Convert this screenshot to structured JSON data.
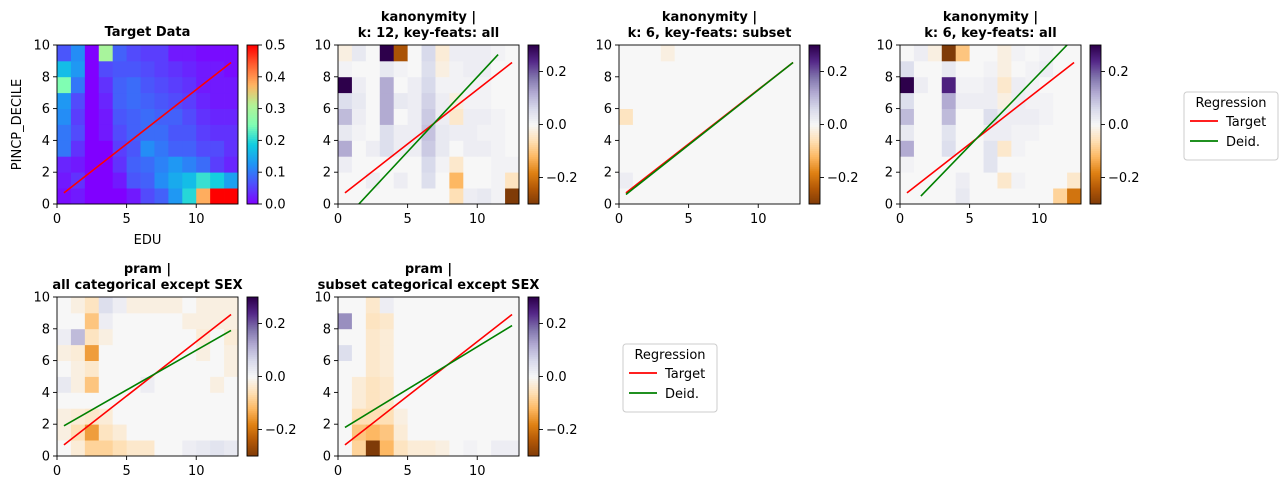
{
  "figure": {
    "legend_title": "Regression"
  },
  "chart_data": [
    {
      "type": "heatmap",
      "title_line1": "Target Data",
      "title_line2": "",
      "xlabel": "EDU",
      "ylabel": "PINCP_DECILE",
      "xlim": [
        0,
        13
      ],
      "ylim": [
        0,
        10
      ],
      "xticks": [
        0,
        5,
        10
      ],
      "yticks": [
        0,
        2,
        4,
        6,
        8,
        10
      ],
      "cmap": "rainbow",
      "clim": [
        0,
        0.5
      ],
      "cbar_ticks": [
        0,
        0.1,
        0.2,
        0.3,
        0.4,
        0.5
      ],
      "cbar_ticklabels": [
        "0.0",
        "0.1",
        "0.2",
        "0.3",
        "0.4",
        "0.5"
      ],
      "grid": false,
      "series": [
        {
          "name": "Target",
          "color": "#ff0000",
          "x": [
            0.5,
            12.5
          ],
          "y": [
            0.7,
            8.9
          ]
        }
      ],
      "cells": [
        [
          0.01,
          0.02,
          0.0,
          0.0,
          0.0,
          0.02,
          0.06,
          0.08,
          0.13,
          0.2,
          0.38,
          0.5,
          0.5
        ],
        [
          0.02,
          0.04,
          0.0,
          0.0,
          0.02,
          0.07,
          0.08,
          0.12,
          0.15,
          0.17,
          0.21,
          0.19,
          0.14
        ],
        [
          0.03,
          0.02,
          0.0,
          0.0,
          0.04,
          0.08,
          0.09,
          0.11,
          0.13,
          0.11,
          0.09,
          0.05,
          0.03
        ],
        [
          0.1,
          0.04,
          0.0,
          0.0,
          0.05,
          0.07,
          0.12,
          0.1,
          0.08,
          0.08,
          0.06,
          0.06,
          0.04
        ],
        [
          0.1,
          0.06,
          0.0,
          0.02,
          0.06,
          0.08,
          0.09,
          0.09,
          0.07,
          0.07,
          0.05,
          0.04,
          0.04
        ],
        [
          0.12,
          0.05,
          0.0,
          0.02,
          0.07,
          0.08,
          0.09,
          0.08,
          0.08,
          0.06,
          0.04,
          0.03,
          0.03
        ],
        [
          0.13,
          0.06,
          0.0,
          0.03,
          0.08,
          0.09,
          0.08,
          0.07,
          0.06,
          0.05,
          0.03,
          0.02,
          0.02
        ],
        [
          0.25,
          0.1,
          0.0,
          0.04,
          0.08,
          0.09,
          0.07,
          0.06,
          0.05,
          0.04,
          0.02,
          0.02,
          0.02
        ],
        [
          0.17,
          0.13,
          0.0,
          0.06,
          0.07,
          0.07,
          0.06,
          0.05,
          0.04,
          0.03,
          0.02,
          0.02,
          0.01
        ],
        [
          0.07,
          0.12,
          0.0,
          0.3,
          0.08,
          0.06,
          0.05,
          0.05,
          0.02,
          0.02,
          0.01,
          0.01,
          0.01
        ]
      ]
    },
    {
      "type": "heatmap",
      "title_line1": "kanonymity |",
      "title_line2": "k: 12, key-feats: all",
      "xlabel": "",
      "ylabel": "",
      "xlim": [
        0,
        13
      ],
      "ylim": [
        0,
        10
      ],
      "xticks": [
        0,
        5,
        10
      ],
      "yticks": [
        0,
        2,
        4,
        6,
        8,
        10
      ],
      "cmap": "PuOr",
      "clim": [
        -0.3,
        0.3
      ],
      "cbar_ticks": [
        -0.2,
        0.0,
        0.2
      ],
      "cbar_ticklabels": [
        "−0.2",
        "0.0",
        "0.2"
      ],
      "grid": false,
      "series": [
        {
          "name": "Target",
          "color": "#ff0000",
          "x": [
            0.5,
            12.5
          ],
          "y": [
            0.7,
            8.9
          ]
        },
        {
          "name": "Deid.",
          "color": "#008000",
          "x": [
            1.5,
            11.5
          ],
          "y": [
            0.0,
            9.4
          ]
        }
      ],
      "cells": [
        [
          0,
          0,
          0,
          0,
          0,
          0,
          0,
          0,
          -0.06,
          0.02,
          0.03,
          0.01,
          -0.3
        ],
        [
          0,
          0,
          0.02,
          0,
          0.02,
          0,
          0.05,
          0,
          -0.12,
          0,
          0,
          0.01,
          -0.05
        ],
        [
          0.02,
          0,
          0,
          0,
          0,
          0,
          0.06,
          0.01,
          -0.04,
          0,
          0,
          0.01,
          0.01
        ],
        [
          0.12,
          0,
          0.02,
          0.05,
          0.02,
          0.02,
          0.08,
          0.03,
          0,
          0.02,
          0.02,
          0.01,
          0
        ],
        [
          0.03,
          0.01,
          0,
          0.05,
          0.02,
          0.02,
          0.09,
          0.03,
          0.02,
          0.02,
          0.01,
          0.01,
          0
        ],
        [
          0.1,
          0.02,
          0,
          0.12,
          0,
          0.02,
          0.08,
          0.02,
          -0.04,
          0.02,
          0.02,
          0.01,
          0
        ],
        [
          0.05,
          0.03,
          0,
          0.12,
          0.03,
          0.02,
          0.07,
          0.02,
          -0.02,
          0.01,
          0.01,
          0,
          0
        ],
        [
          0.3,
          0.02,
          0,
          0.12,
          0,
          0.02,
          0.06,
          0.01,
          0.01,
          0.01,
          0.01,
          0,
          0
        ],
        [
          0.01,
          0,
          0,
          0.03,
          0.01,
          0,
          0.05,
          -0.02,
          0.01,
          0.02,
          0.02,
          0,
          0
        ],
        [
          -0.02,
          0.03,
          0,
          0.3,
          -0.25,
          0,
          0.06,
          -0.03,
          0.02,
          0.02,
          0.02,
          0.01,
          0
        ]
      ]
    },
    {
      "type": "heatmap",
      "title_line1": "kanonymity |",
      "title_line2": "k: 6, key-feats: subset",
      "xlabel": "",
      "ylabel": "",
      "xlim": [
        0,
        13
      ],
      "ylim": [
        0,
        10
      ],
      "xticks": [
        0,
        5,
        10
      ],
      "yticks": [
        0,
        2,
        4,
        6,
        8,
        10
      ],
      "cmap": "PuOr",
      "clim": [
        -0.3,
        0.3
      ],
      "cbar_ticks": [
        -0.2,
        0.0,
        0.2
      ],
      "cbar_ticklabels": [
        "−0.2",
        "0.0",
        "0.2"
      ],
      "grid": false,
      "series": [
        {
          "name": "Target",
          "color": "#ff0000",
          "x": [
            0.5,
            12.5
          ],
          "y": [
            0.7,
            8.9
          ]
        },
        {
          "name": "Deid.",
          "color": "#008000",
          "x": [
            0.5,
            12.5
          ],
          "y": [
            0.6,
            8.9
          ]
        }
      ],
      "cells": [
        [
          0,
          0,
          0,
          0,
          0,
          0,
          0,
          0,
          0,
          0,
          0,
          0,
          0
        ],
        [
          0.02,
          0,
          0,
          0,
          0,
          0,
          0,
          0,
          0,
          0,
          0,
          0,
          0
        ],
        [
          0,
          0,
          0,
          0,
          0,
          0,
          0,
          0,
          0,
          0,
          0,
          0,
          0
        ],
        [
          0,
          0,
          0,
          0,
          0,
          0,
          0,
          0,
          0,
          0,
          0,
          0,
          0
        ],
        [
          0,
          0,
          0,
          0,
          0,
          0,
          0,
          0,
          0,
          0,
          0,
          0,
          0
        ],
        [
          -0.05,
          0,
          0,
          0,
          0,
          0,
          0,
          0,
          0,
          0,
          0,
          0,
          0
        ],
        [
          0,
          0,
          0,
          0,
          0,
          0,
          0,
          0,
          0,
          0,
          0,
          0,
          0
        ],
        [
          0,
          0,
          0,
          0,
          0,
          0,
          0,
          0,
          0,
          0,
          0,
          0,
          0
        ],
        [
          0,
          0,
          0,
          0,
          0,
          0,
          0,
          0,
          0,
          0,
          0,
          0,
          0
        ],
        [
          0,
          0,
          0,
          -0.02,
          0,
          0,
          0,
          0,
          0,
          0,
          0,
          0,
          0
        ]
      ]
    },
    {
      "type": "heatmap",
      "title_line1": "kanonymity |",
      "title_line2": "k: 6, key-feats: all",
      "xlabel": "",
      "ylabel": "",
      "xlim": [
        0,
        13
      ],
      "ylim": [
        0,
        10
      ],
      "xticks": [
        0,
        5,
        10
      ],
      "yticks": [
        0,
        2,
        4,
        6,
        8,
        10
      ],
      "cmap": "PuOr",
      "clim": [
        -0.3,
        0.3
      ],
      "cbar_ticks": [
        -0.2,
        0.0,
        0.2
      ],
      "cbar_ticklabels": [
        "−0.2",
        "0.0",
        "0.2"
      ],
      "grid": false,
      "series": [
        {
          "name": "Target",
          "color": "#ff0000",
          "x": [
            0.5,
            12.5
          ],
          "y": [
            0.7,
            8.9
          ]
        },
        {
          "name": "Deid.",
          "color": "#008000",
          "x": [
            1.5,
            12.0
          ],
          "y": [
            0.5,
            10.0
          ]
        }
      ],
      "cells": [
        [
          0,
          0,
          0,
          0,
          0.03,
          0,
          0,
          0,
          0,
          0,
          0,
          -0.08,
          -0.2
        ],
        [
          0,
          0,
          0,
          0,
          0.02,
          0,
          0,
          -0.04,
          0.01,
          0,
          0,
          0,
          -0.04
        ],
        [
          0.01,
          0,
          0,
          0,
          0,
          0,
          0.04,
          0,
          0,
          0,
          0,
          0,
          0
        ],
        [
          0.12,
          0,
          0,
          0.05,
          0,
          0,
          0.04,
          -0.04,
          0.01,
          0,
          0,
          0,
          0
        ],
        [
          0.03,
          0,
          0,
          0.04,
          0,
          0,
          0.02,
          0.02,
          0.01,
          0.01,
          0,
          0,
          0
        ],
        [
          0.1,
          0,
          0,
          0.1,
          0,
          0,
          0.05,
          0.02,
          0.02,
          0.02,
          0.01,
          0,
          0
        ],
        [
          0.05,
          0,
          0,
          0.12,
          0.02,
          0.02,
          0.02,
          -0.02,
          0.02,
          0.01,
          0.01,
          0,
          0
        ],
        [
          0.3,
          0.02,
          0,
          0.25,
          0.01,
          0.01,
          0.02,
          -0.04,
          0.02,
          0.01,
          0,
          0,
          0
        ],
        [
          0.05,
          0,
          0,
          0.03,
          0,
          0,
          0.01,
          -0.02,
          0,
          0.01,
          0.02,
          0,
          0
        ],
        [
          0,
          0.02,
          -0.02,
          -0.3,
          -0.1,
          0,
          0,
          -0.02,
          0.01,
          0,
          0.01,
          0,
          0
        ]
      ]
    },
    {
      "type": "heatmap",
      "title_line1": "pram |",
      "title_line2": "all categorical except SEX",
      "xlabel": "",
      "ylabel": "",
      "xlim": [
        0,
        13
      ],
      "ylim": [
        0,
        10
      ],
      "xticks": [
        0,
        5,
        10
      ],
      "yticks": [
        0,
        2,
        4,
        6,
        8,
        10
      ],
      "cmap": "PuOr",
      "clim": [
        -0.3,
        0.3
      ],
      "cbar_ticks": [
        -0.2,
        0.0,
        0.2
      ],
      "cbar_ticklabels": [
        "−0.2",
        "0.0",
        "0.2"
      ],
      "grid": false,
      "series": [
        {
          "name": "Target",
          "color": "#ff0000",
          "x": [
            0.5,
            12.5
          ],
          "y": [
            0.7,
            8.9
          ]
        },
        {
          "name": "Deid.",
          "color": "#008000",
          "x": [
            0.5,
            12.5
          ],
          "y": [
            1.9,
            7.9
          ]
        }
      ],
      "cells": [
        [
          0,
          -0.03,
          -0.08,
          -0.08,
          -0.06,
          -0.04,
          -0.04,
          0,
          0,
          0.02,
          0.03,
          0.04,
          0.03
        ],
        [
          -0.02,
          -0.06,
          -0.15,
          -0.05,
          -0.03,
          0,
          0,
          0,
          0,
          0,
          0,
          0,
          0
        ],
        [
          -0.02,
          -0.03,
          -0.04,
          -0.03,
          0,
          0,
          0,
          0,
          0,
          0,
          0,
          0,
          0
        ],
        [
          0,
          0,
          0,
          0,
          0,
          0,
          0,
          0,
          0,
          0,
          0,
          0,
          0
        ],
        [
          0.03,
          -0.02,
          -0.1,
          0,
          0,
          0,
          0.02,
          0,
          0,
          0,
          0,
          -0.02,
          0
        ],
        [
          0,
          -0.02,
          -0.04,
          0,
          0,
          0,
          0,
          0,
          0,
          0,
          0,
          0,
          -0.02
        ],
        [
          -0.02,
          -0.03,
          -0.15,
          0,
          0,
          0,
          0,
          0,
          0,
          0,
          -0.02,
          0,
          -0.02
        ],
        [
          0.02,
          0.1,
          -0.05,
          -0.02,
          0,
          0,
          0,
          0,
          0,
          0,
          -0.03,
          0,
          -0.03
        ],
        [
          0,
          0,
          -0.1,
          0.02,
          0,
          0,
          0,
          0,
          0,
          -0.02,
          -0.02,
          -0.02,
          -0.02
        ],
        [
          0,
          -0.02,
          -0.05,
          0.05,
          0.02,
          -0.02,
          -0.02,
          -0.02,
          -0.02,
          0,
          -0.02,
          -0.02,
          -0.02
        ]
      ]
    },
    {
      "type": "heatmap",
      "title_line1": "pram |",
      "title_line2": "subset categorical except SEX",
      "xlabel": "",
      "ylabel": "",
      "xlim": [
        0,
        13
      ],
      "ylim": [
        0,
        10
      ],
      "xticks": [
        0,
        5,
        10
      ],
      "yticks": [
        0,
        2,
        4,
        6,
        8,
        10
      ],
      "cmap": "PuOr",
      "clim": [
        -0.3,
        0.3
      ],
      "cbar_ticks": [
        -0.2,
        0.0,
        0.2
      ],
      "cbar_ticklabels": [
        "−0.2",
        "0.0",
        "0.2"
      ],
      "grid": false,
      "series": [
        {
          "name": "Target",
          "color": "#ff0000",
          "x": [
            0.5,
            12.5
          ],
          "y": [
            0.7,
            8.9
          ]
        },
        {
          "name": "Deid.",
          "color": "#008000",
          "x": [
            0.5,
            12.5
          ],
          "y": [
            1.8,
            8.2
          ]
        }
      ],
      "cells": [
        [
          0,
          -0.08,
          -0.3,
          -0.12,
          -0.05,
          -0.03,
          -0.03,
          -0.02,
          0,
          0.01,
          0,
          0.02,
          0.02
        ],
        [
          0,
          -0.1,
          -0.12,
          -0.1,
          -0.03,
          0,
          0,
          0,
          0,
          0,
          0,
          0,
          0
        ],
        [
          0,
          -0.06,
          -0.06,
          -0.06,
          -0.02,
          0,
          0,
          0,
          0,
          0,
          0,
          0,
          0
        ],
        [
          0,
          -0.03,
          -0.05,
          -0.04,
          0,
          0,
          0,
          0,
          0,
          0,
          0,
          0,
          0
        ],
        [
          0,
          -0.03,
          -0.05,
          -0.04,
          0,
          0,
          0,
          0,
          0,
          0,
          0,
          0,
          0
        ],
        [
          0,
          0,
          -0.04,
          -0.03,
          0,
          0,
          0,
          0,
          0,
          0,
          0,
          0,
          0
        ],
        [
          0.05,
          0,
          -0.04,
          -0.03,
          0,
          0,
          0,
          0,
          0,
          0,
          0,
          0,
          0
        ],
        [
          0,
          0,
          -0.04,
          -0.03,
          0,
          0,
          0,
          0,
          0,
          0,
          0,
          0,
          0
        ],
        [
          0.15,
          0,
          -0.05,
          -0.04,
          0,
          0,
          0,
          0,
          0,
          0,
          0,
          0,
          0
        ],
        [
          0,
          0,
          -0.04,
          0.02,
          0,
          0,
          0,
          0,
          0,
          0,
          0,
          0,
          0
        ]
      ]
    }
  ]
}
